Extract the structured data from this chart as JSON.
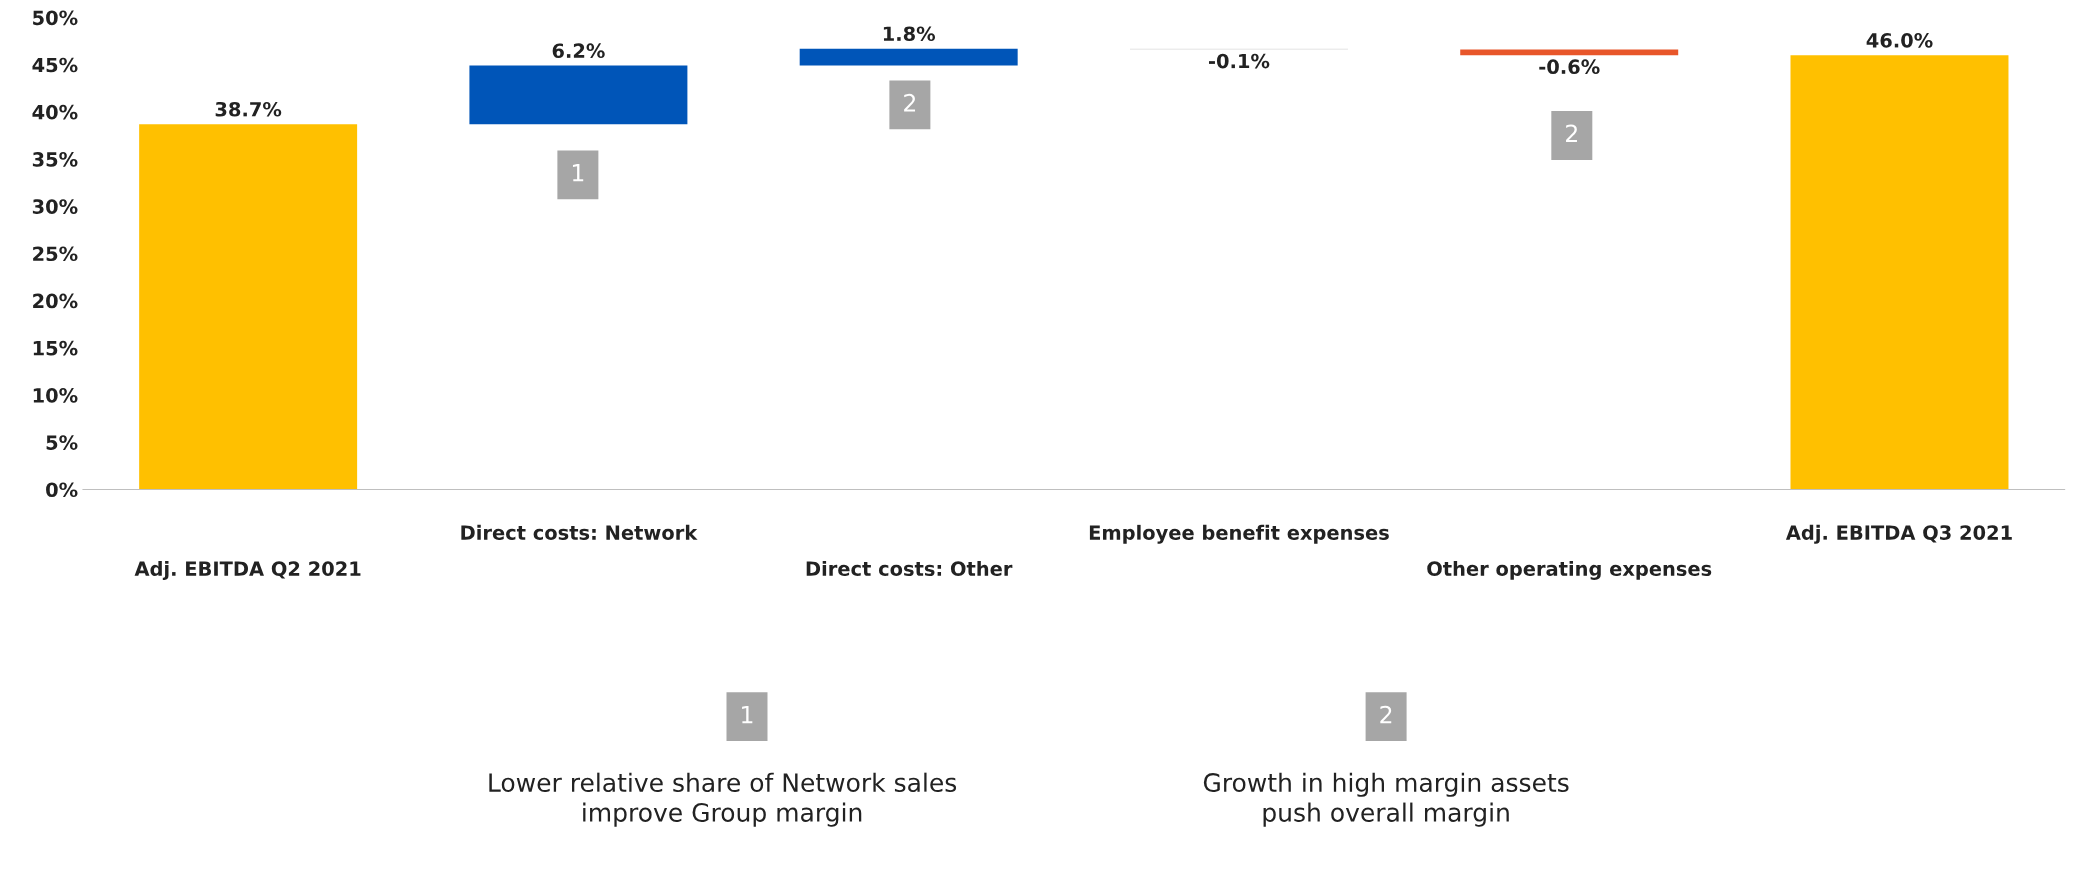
{
  "chart_data": {
    "type": "bar",
    "categories": [
      "Adj. EBITDA Q2 2021",
      "Direct costs: Network",
      "Direct costs: Other",
      "Employee benefit expenses",
      "Other operating expenses",
      "Adj. EBITDA Q3 2021"
    ],
    "values": [
      38.7,
      6.2,
      1.8,
      -0.1,
      -0.6,
      46.0
    ],
    "base": [
      0,
      38.7,
      44.9,
      46.7,
      46.6,
      0
    ],
    "colors": [
      "#ffc000",
      "#0055b8",
      "#0055b8",
      "#d9d9d9",
      "#e8562a",
      "#ffc000"
    ],
    "value_labels": [
      "38.7%",
      "6.2%",
      "1.8%",
      "-0.1%",
      "-0.6%",
      "46.0%"
    ],
    "ylim": [
      0,
      50
    ],
    "yticks": [
      {
        "value": 0,
        "label": "0%"
      },
      {
        "value": 5,
        "label": "5%"
      },
      {
        "value": 10,
        "label": "10%"
      },
      {
        "value": 15,
        "label": "15%"
      },
      {
        "value": 20,
        "label": "20%"
      },
      {
        "value": 25,
        "label": "25%"
      },
      {
        "value": 30,
        "label": "30%"
      },
      {
        "value": 35,
        "label": "35%"
      },
      {
        "value": 40,
        "label": "40%"
      },
      {
        "value": 45,
        "label": "45%"
      },
      {
        "value": 50,
        "label": "50%"
      }
    ],
    "annotations": [
      "1",
      "2",
      "2",
      "1",
      "Lower relative share of Network sales\nimprove Group margin",
      "2",
      "Growth in high margin assets\npush overall margin"
    ]
  }
}
